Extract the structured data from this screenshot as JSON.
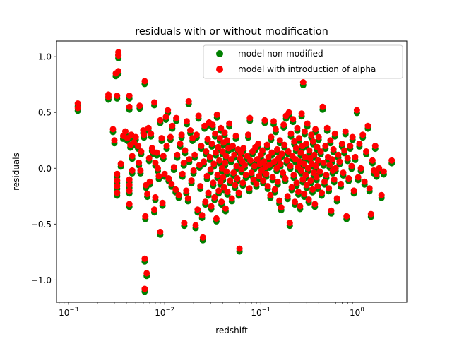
{
  "chart_data": {
    "type": "scatter",
    "title": "residuals with or without modification",
    "xlabel": "redshift",
    "ylabel": "residuals",
    "xscale": "log",
    "xlim": [
      0.00075,
      3.3
    ],
    "ylim": [
      -1.2,
      1.14
    ],
    "x_ticks": [
      {
        "value": 0.001,
        "base": "10",
        "exp": "−3"
      },
      {
        "value": 0.01,
        "base": "10",
        "exp": "−2"
      },
      {
        "value": 0.1,
        "base": "10",
        "exp": "−1"
      },
      {
        "value": 1,
        "base": "10",
        "exp": "0"
      }
    ],
    "y_ticks": [
      {
        "value": 1.0,
        "label": "1.0"
      },
      {
        "value": 0.5,
        "label": "0.5"
      },
      {
        "value": 0.0,
        "label": "0.0"
      },
      {
        "value": -0.5,
        "label": "−0.5"
      },
      {
        "value": -1.0,
        "label": "−1.0"
      }
    ],
    "legend_position": "top-right",
    "grid": false,
    "series": [
      {
        "name": "model non-modified",
        "color": "#008000",
        "offset": -0.025
      },
      {
        "name": "model with introduction of alpha",
        "color": "#ff0000",
        "offset": 0.0
      }
    ],
    "points": [
      [
        0.00125,
        0.58
      ],
      [
        0.00125,
        0.54
      ],
      [
        0.0026,
        0.66
      ],
      [
        0.0026,
        0.64
      ],
      [
        0.0029,
        0.35
      ],
      [
        0.003,
        0.25
      ],
      [
        0.0031,
        0.85
      ],
      [
        0.0033,
        0.87
      ],
      [
        0.0033,
        1.04
      ],
      [
        0.0033,
        1.01
      ],
      [
        0.0032,
        0.65
      ],
      [
        0.0032,
        -0.05
      ],
      [
        0.0032,
        -0.11
      ],
      [
        0.0032,
        -0.16
      ],
      [
        0.0032,
        -0.22
      ],
      [
        0.0035,
        0.04
      ],
      [
        0.0037,
        0.29
      ],
      [
        0.0039,
        0.33
      ],
      [
        0.0041,
        0.27
      ],
      [
        0.0043,
        0.65
      ],
      [
        0.0043,
        0.55
      ],
      [
        0.0044,
        0.21
      ],
      [
        0.0043,
        -0.1
      ],
      [
        0.0043,
        -0.15
      ],
      [
        0.0043,
        -0.2
      ],
      [
        0.0043,
        -0.32
      ],
      [
        0.0045,
        0.3
      ],
      [
        0.0046,
        0.11
      ],
      [
        0.0046,
        -0.02
      ],
      [
        0.0048,
        0.23
      ],
      [
        0.005,
        0.28
      ],
      [
        0.0053,
        0.2
      ],
      [
        0.0055,
        0.56
      ],
      [
        0.0054,
        0.05
      ],
      [
        0.0056,
        -0.02
      ],
      [
        0.0057,
        0.15
      ],
      [
        0.006,
        0.34
      ],
      [
        0.0061,
        0.3
      ],
      [
        0.0062,
        0.78
      ],
      [
        0.0062,
        -0.81
      ],
      [
        0.0062,
        -1.08
      ],
      [
        0.0063,
        -0.43
      ],
      [
        0.0064,
        -0.15
      ],
      [
        0.0065,
        -0.94
      ],
      [
        0.0066,
        -0.23
      ],
      [
        0.0068,
        0.36
      ],
      [
        0.0069,
        0.09
      ],
      [
        0.007,
        -0.12
      ],
      [
        0.0072,
        0.31
      ],
      [
        0.0074,
        0.18
      ],
      [
        0.0076,
        0.15
      ],
      [
        0.0078,
        0.59
      ],
      [
        0.0078,
        -0.37
      ],
      [
        0.008,
        0.05
      ],
      [
        0.008,
        -0.26
      ],
      [
        0.0083,
        0.14
      ],
      [
        0.0085,
        0.0
      ],
      [
        0.0087,
        -0.07
      ],
      [
        0.009,
        0.43
      ],
      [
        0.009,
        -0.57
      ],
      [
        0.0093,
        0.27
      ],
      [
        0.0095,
        -0.31
      ],
      [
        0.0097,
        0.11
      ],
      [
        0.01,
        -0.05
      ],
      [
        0.0103,
        0.46
      ],
      [
        0.0105,
        0.2
      ],
      [
        0.0108,
        0.52
      ],
      [
        0.011,
        -0.09
      ],
      [
        0.0115,
        0.28
      ],
      [
        0.0118,
        -0.14
      ],
      [
        0.012,
        0.38
      ],
      [
        0.0125,
        0.01
      ],
      [
        0.013,
        -0.19
      ],
      [
        0.0132,
        0.45
      ],
      [
        0.0135,
        0.12
      ],
      [
        0.014,
        -0.24
      ],
      [
        0.0145,
        0.22
      ],
      [
        0.015,
        0.3
      ],
      [
        0.0153,
        -0.05
      ],
      [
        0.0158,
        0.05
      ],
      [
        0.016,
        -0.49
      ],
      [
        0.0163,
        0.16
      ],
      [
        0.0168,
        -0.2
      ],
      [
        0.017,
        0.42
      ],
      [
        0.0175,
        -0.27
      ],
      [
        0.0178,
        0.6
      ],
      [
        0.018,
        0.08
      ],
      [
        0.0185,
        0.34
      ],
      [
        0.019,
        -0.11
      ],
      [
        0.0195,
        0.27
      ],
      [
        0.02,
        -0.02
      ],
      [
        0.0205,
        0.12
      ],
      [
        0.021,
        -0.51
      ],
      [
        0.0215,
        0.3
      ],
      [
        0.022,
        -0.37
      ],
      [
        0.0225,
        0.47
      ],
      [
        0.023,
        0.03
      ],
      [
        0.0235,
        -0.16
      ],
      [
        0.024,
        0.2
      ],
      [
        0.0245,
        -0.42
      ],
      [
        0.025,
        -0.62
      ],
      [
        0.0255,
        0.06
      ],
      [
        0.026,
        0.38
      ],
      [
        0.0265,
        -0.3
      ],
      [
        0.027,
        0.15
      ],
      [
        0.0275,
        -0.07
      ],
      [
        0.028,
        0.26
      ],
      [
        0.0285,
        -0.22
      ],
      [
        0.029,
        0.41
      ],
      [
        0.0295,
        0.1
      ],
      [
        0.03,
        -0.01
      ],
      [
        0.0305,
        -0.34
      ],
      [
        0.031,
        0.22
      ],
      [
        0.0315,
        0.39
      ],
      [
        0.032,
        -0.13
      ],
      [
        0.0325,
        0.04
      ],
      [
        0.033,
        -0.26
      ],
      [
        0.0335,
        0.31
      ],
      [
        0.034,
        0.14
      ],
      [
        0.0345,
        -0.45
      ],
      [
        0.035,
        0.48
      ],
      [
        0.0355,
        -0.06
      ],
      [
        0.036,
        0.19
      ],
      [
        0.0365,
        -0.2
      ],
      [
        0.037,
        0.07
      ],
      [
        0.0375,
        0.27
      ],
      [
        0.038,
        -0.12
      ],
      [
        0.0385,
        0.36
      ],
      [
        0.039,
        -0.3
      ],
      [
        0.0395,
        0.0
      ],
      [
        0.04,
        0.15
      ],
      [
        0.0405,
        -0.08
      ],
      [
        0.041,
        0.23
      ],
      [
        0.0415,
        -0.17
      ],
      [
        0.042,
        0.32
      ],
      [
        0.0425,
        0.05
      ],
      [
        0.043,
        -0.36
      ],
      [
        0.0435,
        0.11
      ],
      [
        0.044,
        -0.03
      ],
      [
        0.0445,
        0.25
      ],
      [
        0.045,
        -0.21
      ],
      [
        0.046,
        0.18
      ],
      [
        0.047,
        0.4
      ],
      [
        0.048,
        -0.11
      ],
      [
        0.049,
        0.08
      ],
      [
        0.05,
        -0.27
      ],
      [
        0.051,
        0.2
      ],
      [
        0.052,
        -0.04
      ],
      [
        0.053,
        0.12
      ],
      [
        0.054,
        -0.15
      ],
      [
        0.055,
        0.29
      ],
      [
        0.056,
        0.02
      ],
      [
        0.057,
        -0.09
      ],
      [
        0.058,
        0.17
      ],
      [
        0.059,
        -0.22
      ],
      [
        0.06,
        -0.72
      ],
      [
        0.061,
        0.09
      ],
      [
        0.062,
        0.14
      ],
      [
        0.063,
        -0.01
      ],
      [
        0.064,
        0.06
      ],
      [
        0.065,
        -0.13
      ],
      [
        0.066,
        0.18
      ],
      [
        0.068,
        0.03
      ],
      [
        0.07,
        -0.06
      ],
      [
        0.072,
        0.11
      ],
      [
        0.074,
        0.3
      ],
      [
        0.076,
        -0.18
      ],
      [
        0.077,
        0.45
      ],
      [
        0.078,
        0.07
      ],
      [
        0.08,
        -0.04
      ],
      [
        0.082,
        0.15
      ],
      [
        0.084,
        -0.1
      ],
      [
        0.086,
        0.02
      ],
      [
        0.088,
        0.19
      ],
      [
        0.09,
        -0.14
      ],
      [
        0.092,
        0.08
      ],
      [
        0.094,
        0.22
      ],
      [
        0.096,
        -0.07
      ],
      [
        0.098,
        0.04
      ],
      [
        0.1,
        0.12
      ],
      [
        0.102,
        -0.02
      ],
      [
        0.104,
        0.16
      ],
      [
        0.106,
        -0.11
      ],
      [
        0.108,
        0.06
      ],
      [
        0.11,
        0.43
      ],
      [
        0.112,
        0.01
      ],
      [
        0.114,
        -0.05
      ],
      [
        0.116,
        0.21
      ],
      [
        0.118,
        -0.16
      ],
      [
        0.12,
        0.1
      ],
      [
        0.123,
        0.03
      ],
      [
        0.126,
        -0.24
      ],
      [
        0.128,
        0.28
      ],
      [
        0.13,
        0.14
      ],
      [
        0.133,
        -0.08
      ],
      [
        0.136,
        0.42
      ],
      [
        0.138,
        0.06
      ],
      [
        0.14,
        -0.19
      ],
      [
        0.143,
        0.35
      ],
      [
        0.146,
        0.0
      ],
      [
        0.148,
        0.17
      ],
      [
        0.15,
        -0.12
      ],
      [
        0.153,
        0.09
      ],
      [
        0.156,
        -0.29
      ],
      [
        0.158,
        0.25
      ],
      [
        0.16,
        0.04
      ],
      [
        0.163,
        -0.35
      ],
      [
        0.166,
        0.13
      ],
      [
        0.17,
        -0.04
      ],
      [
        0.173,
        0.39
      ],
      [
        0.176,
        0.21
      ],
      [
        0.18,
        -0.09
      ],
      [
        0.183,
        0.47
      ],
      [
        0.186,
        0.07
      ],
      [
        0.19,
        -0.25
      ],
      [
        0.193,
        0.15
      ],
      [
        0.196,
        0.5
      ],
      [
        0.2,
        -0.49
      ],
      [
        0.203,
        0.02
      ],
      [
        0.206,
        0.31
      ],
      [
        0.21,
        -0.17
      ],
      [
        0.213,
        0.11
      ],
      [
        0.216,
        0.44
      ],
      [
        0.22,
        -0.06
      ],
      [
        0.223,
        0.24
      ],
      [
        0.226,
        -0.3
      ],
      [
        0.23,
        0.08
      ],
      [
        0.233,
        0.18
      ],
      [
        0.236,
        -0.13
      ],
      [
        0.24,
        0.36
      ],
      [
        0.243,
        0.01
      ],
      [
        0.246,
        -0.21
      ],
      [
        0.25,
        0.27
      ],
      [
        0.253,
        0.06
      ],
      [
        0.256,
        -0.34
      ],
      [
        0.26,
        0.14
      ],
      [
        0.263,
        -0.02
      ],
      [
        0.266,
        0.49
      ],
      [
        0.27,
        0.2
      ],
      [
        0.273,
        -0.1
      ],
      [
        0.276,
        0.77
      ],
      [
        0.28,
        0.04
      ],
      [
        0.283,
        -0.23
      ],
      [
        0.286,
        0.33
      ],
      [
        0.29,
        0.1
      ],
      [
        0.293,
        -0.06
      ],
      [
        0.296,
        0.22
      ],
      [
        0.3,
        -0.15
      ],
      [
        0.305,
        0.4
      ],
      [
        0.31,
        0.0
      ],
      [
        0.315,
        -0.28
      ],
      [
        0.32,
        0.16
      ],
      [
        0.325,
        0.09
      ],
      [
        0.33,
        -0.11
      ],
      [
        0.335,
        0.3
      ],
      [
        0.34,
        0.04
      ],
      [
        0.345,
        -0.19
      ],
      [
        0.35,
        0.24
      ],
      [
        0.355,
        -0.04
      ],
      [
        0.36,
        0.12
      ],
      [
        0.365,
        -0.32
      ],
      [
        0.37,
        0.35
      ],
      [
        0.375,
        0.02
      ],
      [
        0.38,
        -0.08
      ],
      [
        0.385,
        0.19
      ],
      [
        0.39,
        -0.16
      ],
      [
        0.395,
        0.07
      ],
      [
        0.4,
        0.28
      ],
      [
        0.41,
        -0.03
      ],
      [
        0.42,
        0.15
      ],
      [
        0.43,
        -0.22
      ],
      [
        0.44,
        0.55
      ],
      [
        0.45,
        0.05
      ],
      [
        0.46,
        -0.12
      ],
      [
        0.47,
        0.2
      ],
      [
        0.48,
        -0.06
      ],
      [
        0.49,
        0.36
      ],
      [
        0.5,
        0.1
      ],
      [
        0.51,
        -0.18
      ],
      [
        0.52,
        0.03
      ],
      [
        0.53,
        0.25
      ],
      [
        0.54,
        -0.38
      ],
      [
        0.55,
        0.08
      ],
      [
        0.56,
        -0.02
      ],
      [
        0.57,
        0.17
      ],
      [
        0.58,
        -0.1
      ],
      [
        0.59,
        0.31
      ],
      [
        0.6,
        0.0
      ],
      [
        0.62,
        -0.27
      ],
      [
        0.64,
        0.12
      ],
      [
        0.66,
        0.06
      ],
      [
        0.68,
        -0.14
      ],
      [
        0.7,
        0.22
      ],
      [
        0.72,
        -0.04
      ],
      [
        0.74,
        0.16
      ],
      [
        0.76,
        0.33
      ],
      [
        0.78,
        -0.43
      ],
      [
        0.8,
        0.09
      ],
      [
        0.82,
        -0.09
      ],
      [
        0.85,
        0.2
      ],
      [
        0.88,
        0.02
      ],
      [
        0.9,
        0.28
      ],
      [
        0.93,
        -0.2
      ],
      [
        0.96,
        0.1
      ],
      [
        1.0,
        0.52
      ],
      [
        1.03,
        -0.08
      ],
      [
        1.06,
        0.22
      ],
      [
        1.1,
        0.0
      ],
      [
        1.15,
        0.3
      ],
      [
        1.2,
        -0.12
      ],
      [
        1.25,
        0.15
      ],
      [
        1.3,
        0.38
      ],
      [
        1.35,
        -0.18
      ],
      [
        1.4,
        -0.41
      ],
      [
        1.45,
        0.07
      ],
      [
        1.5,
        -0.02
      ],
      [
        1.55,
        0.2
      ],
      [
        1.6,
        -0.05
      ],
      [
        1.7,
        0.0
      ],
      [
        1.8,
        -0.24
      ],
      [
        1.9,
        -0.03
      ],
      [
        2.3,
        0.07
      ]
    ]
  }
}
